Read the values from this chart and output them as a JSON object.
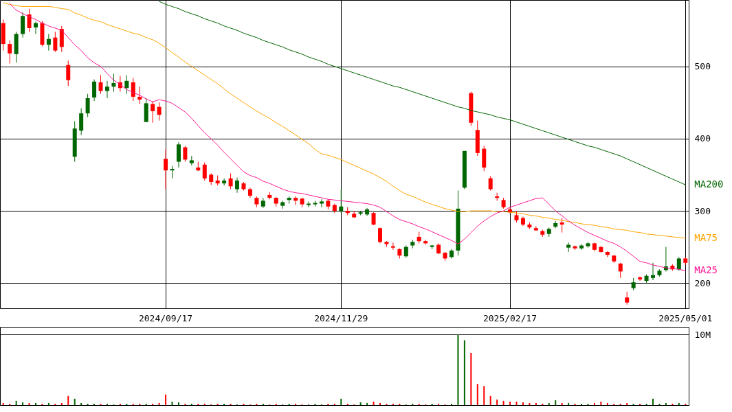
{
  "chart_data": [
    {
      "type": "candlestick",
      "categories": [
        null,
        null,
        null,
        null,
        null,
        null,
        null,
        null,
        null,
        null,
        null,
        null,
        null,
        null,
        null,
        null,
        null,
        null,
        null,
        null,
        null,
        null,
        null,
        null,
        null,
        "2024/09/17",
        null,
        null,
        null,
        null,
        null,
        null,
        null,
        null,
        null,
        null,
        null,
        null,
        null,
        null,
        null,
        null,
        null,
        null,
        null,
        null,
        null,
        null,
        null,
        null,
        null,
        null,
        "2024/11/29",
        null,
        null,
        null,
        null,
        null,
        null,
        null,
        null,
        null,
        null,
        null,
        null,
        null,
        null,
        null,
        null,
        null,
        null,
        null,
        null,
        null,
        null,
        null,
        null,
        null,
        "2025/02/17",
        null,
        null,
        null,
        null,
        null,
        null,
        null,
        null,
        null,
        null,
        null,
        null,
        null,
        null,
        null,
        null,
        null,
        null,
        null,
        null,
        null,
        null,
        null,
        null,
        null,
        null,
        "2025/05/01"
      ],
      "ohlc": [
        [
          560,
          565,
          522,
          531
        ],
        [
          531,
          536,
          504,
          518
        ],
        [
          517,
          548,
          505,
          545
        ],
        [
          545,
          575,
          540,
          570
        ],
        [
          572,
          580,
          548,
          553
        ],
        [
          554,
          562,
          545,
          560
        ],
        [
          560,
          563,
          528,
          530
        ],
        [
          530,
          545,
          522,
          538
        ],
        [
          540,
          548,
          520,
          522
        ],
        [
          552,
          556,
          520,
          527
        ],
        [
          502,
          508,
          473,
          481
        ],
        [
          375,
          424,
          368,
          414
        ],
        [
          411,
          442,
          405,
          435
        ],
        [
          435,
          462,
          430,
          456
        ],
        [
          457,
          482,
          452,
          479
        ],
        [
          478,
          488,
          462,
          466
        ],
        [
          466,
          480,
          456,
          472
        ],
        [
          472,
          490,
          465,
          477
        ],
        [
          478,
          487,
          465,
          470
        ],
        [
          470,
          488,
          462,
          480
        ],
        [
          478,
          484,
          452,
          458
        ],
        [
          458,
          472,
          448,
          454
        ],
        [
          423,
          456,
          423,
          449
        ],
        [
          448,
          452,
          422,
          438
        ],
        [
          444,
          450,
          425,
          433
        ],
        [
          372,
          385,
          330,
          356
        ],
        [
          356,
          362,
          345,
          358
        ],
        [
          368,
          395,
          360,
          392
        ],
        [
          388,
          390,
          368,
          371
        ],
        [
          366,
          376,
          363,
          370
        ],
        [
          360,
          368,
          355,
          356
        ],
        [
          364,
          367,
          342,
          345
        ],
        [
          350,
          352,
          336,
          340
        ],
        [
          342,
          349,
          335,
          338
        ],
        [
          338,
          345,
          335,
          342
        ],
        [
          345,
          352,
          330,
          334
        ],
        [
          330,
          346,
          325,
          342
        ],
        [
          338,
          340,
          328,
          330
        ],
        [
          330,
          332,
          318,
          321
        ],
        [
          318,
          320,
          305,
          309
        ],
        [
          306,
          318,
          304,
          314
        ],
        [
          322,
          326,
          316,
          318
        ],
        [
          318,
          319,
          306,
          310
        ],
        [
          307,
          314,
          303,
          312
        ],
        [
          315,
          320,
          310,
          318
        ],
        [
          318,
          320,
          308,
          314
        ],
        [
          317,
          318,
          305,
          309
        ],
        [
          308,
          313,
          305,
          310
        ],
        [
          309,
          314,
          306,
          311
        ],
        [
          310,
          316,
          305,
          313
        ],
        [
          314,
          316,
          302,
          306
        ],
        [
          308,
          310,
          297,
          300
        ],
        [
          300,
          330,
          297,
          306
        ],
        [
          300,
          305,
          294,
          297
        ],
        [
          296,
          300,
          290,
          291
        ],
        [
          296,
          299,
          294,
          298
        ],
        [
          295,
          304,
          293,
          302
        ],
        [
          297,
          298,
          280,
          281
        ],
        [
          276,
          277,
          255,
          257
        ],
        [
          257,
          258,
          250,
          254
        ],
        [
          251,
          256,
          246,
          249
        ],
        [
          247,
          248,
          234,
          238
        ],
        [
          237,
          252,
          235,
          250
        ],
        [
          252,
          260,
          248,
          257
        ],
        [
          264,
          271,
          255,
          258
        ],
        [
          258,
          260,
          253,
          255
        ],
        [
          250,
          253,
          247,
          252
        ],
        [
          253,
          255,
          240,
          241
        ],
        [
          242,
          243,
          231,
          234
        ],
        [
          236,
          247,
          234,
          245
        ],
        [
          245,
          328,
          238,
          303
        ],
        [
          332,
          383,
          330,
          383
        ],
        [
          463,
          465,
          418,
          422
        ],
        [
          412,
          425,
          376,
          380
        ],
        [
          386,
          390,
          355,
          360
        ],
        [
          345,
          348,
          328,
          330
        ],
        [
          320,
          325,
          314,
          318
        ],
        [
          315,
          318,
          303,
          305
        ],
        [
          302,
          305,
          296,
          298
        ],
        [
          294,
          300,
          284,
          287
        ],
        [
          290,
          292,
          279,
          281
        ],
        [
          281,
          284,
          275,
          277
        ],
        [
          276,
          279,
          272,
          273
        ],
        [
          272,
          274,
          264,
          267
        ],
        [
          268,
          277,
          264,
          275
        ],
        [
          278,
          286,
          276,
          283
        ],
        [
          284,
          290,
          270,
          281
        ],
        [
          249,
          256,
          243,
          253
        ],
        [
          251,
          252,
          246,
          248
        ],
        [
          248,
          254,
          246,
          252
        ],
        [
          251,
          257,
          249,
          255
        ],
        [
          255,
          256,
          244,
          246
        ],
        [
          250,
          251,
          242,
          243
        ],
        [
          243,
          244,
          236,
          239
        ],
        [
          238,
          239,
          228,
          230
        ],
        [
          227,
          228,
          207,
          216
        ],
        [
          180,
          188,
          170,
          173
        ],
        [
          193,
          207,
          190,
          201
        ],
        [
          208,
          209,
          203,
          205
        ],
        [
          203,
          212,
          199,
          210
        ],
        [
          207,
          228,
          204,
          211
        ],
        [
          211,
          219,
          209,
          217
        ],
        [
          218,
          250,
          216,
          223
        ],
        [
          224,
          226,
          217,
          219
        ],
        [
          219,
          236,
          217,
          234
        ],
        [
          234,
          236,
          225,
          228
        ]
      ],
      "series": [
        {
          "name": "MA200",
          "type": "line",
          "color": "#006400",
          "values": [
            null,
            null,
            null,
            null,
            null,
            null,
            null,
            null,
            null,
            null,
            null,
            null,
            null,
            null,
            null,
            null,
            null,
            null,
            null,
            null,
            null,
            null,
            null,
            null,
            590,
            586,
            583,
            580,
            576,
            573,
            570,
            566,
            563,
            560,
            556,
            553,
            550,
            546,
            543,
            540,
            536,
            533,
            530,
            527,
            523,
            520,
            517,
            513,
            510,
            507,
            503,
            500,
            497,
            494,
            491,
            488,
            485,
            482,
            479,
            476,
            473,
            471,
            468,
            465,
            462,
            459,
            456,
            453,
            450,
            447,
            444,
            442,
            439,
            437,
            435,
            433,
            430,
            428,
            426,
            423,
            420,
            417,
            414,
            411,
            408,
            405,
            402,
            399,
            396,
            393,
            390,
            388,
            385,
            382,
            379,
            376,
            372,
            368,
            364,
            360,
            356,
            352,
            348,
            344,
            340,
            336
          ]
        },
        {
          "name": "MA75",
          "type": "line",
          "color": "#ffa500",
          "values": [
            588,
            586,
            584,
            583,
            583,
            583,
            583,
            583,
            582,
            580,
            579,
            574,
            571,
            567,
            564,
            562,
            558,
            555,
            552,
            549,
            546,
            544,
            540,
            537,
            532,
            526,
            519,
            513,
            506,
            500,
            494,
            488,
            482,
            476,
            469,
            462,
            456,
            450,
            444,
            438,
            433,
            428,
            422,
            417,
            411,
            405,
            399,
            393,
            385,
            379,
            377,
            374,
            371,
            367,
            363,
            359,
            355,
            351,
            346,
            341,
            334,
            328,
            323,
            320,
            316,
            312,
            309,
            306,
            303,
            301,
            299,
            299,
            300,
            300,
            300,
            300,
            299,
            299,
            298,
            297,
            296,
            294,
            293,
            291,
            290,
            288,
            287,
            285,
            284,
            282,
            281,
            280,
            278,
            277,
            275,
            274,
            273,
            271,
            270,
            268,
            267,
            266,
            265,
            264,
            263,
            262
          ]
        },
        {
          "name": "MA25",
          "type": "line",
          "color": "#ff1493",
          "values": [
            null,
            587,
            578,
            573,
            569,
            565,
            560,
            556,
            553,
            550,
            540,
            530,
            522,
            512,
            505,
            500,
            490,
            481,
            475,
            468,
            464,
            460,
            455,
            451,
            454,
            452,
            449,
            443,
            437,
            428,
            418,
            408,
            400,
            391,
            381,
            372,
            363,
            354,
            349,
            346,
            341,
            338,
            334,
            330,
            327,
            325,
            324,
            322,
            320,
            318,
            316,
            315,
            314,
            313,
            312,
            311,
            310,
            308,
            305,
            299,
            293,
            288,
            285,
            282,
            278,
            275,
            271,
            267,
            263,
            259,
            254,
            261,
            270,
            279,
            286,
            292,
            297,
            300,
            305,
            308,
            311,
            314,
            317,
            318,
            309,
            300,
            293,
            286,
            280,
            275,
            270,
            266,
            262,
            258,
            255,
            250,
            244,
            237,
            230,
            228,
            225,
            223,
            221,
            220,
            219,
            217
          ]
        }
      ],
      "ylim": [
        165,
        592
      ],
      "yticks": [
        200,
        300,
        400,
        500
      ],
      "grid": true
    },
    {
      "type": "bar",
      "categories": [
        null,
        null,
        null,
        null,
        null,
        null,
        null,
        null,
        null,
        null,
        null,
        null,
        null,
        null,
        null,
        null,
        null,
        null,
        null,
        null,
        null,
        null,
        null,
        null,
        null,
        "2024/09/17",
        null,
        null,
        null,
        null,
        null,
        null,
        null,
        null,
        null,
        null,
        null,
        null,
        null,
        null,
        null,
        null,
        null,
        null,
        null,
        null,
        null,
        null,
        null,
        null,
        null,
        null,
        "2024/11/29",
        null,
        null,
        null,
        null,
        null,
        null,
        null,
        null,
        null,
        null,
        null,
        null,
        null,
        null,
        null,
        null,
        null,
        null,
        null,
        null,
        null,
        null,
        null,
        null,
        null,
        "2025/02/17",
        null,
        null,
        null,
        null,
        null,
        null,
        null,
        null,
        null,
        null,
        null,
        null,
        null,
        null,
        null,
        null,
        null,
        null,
        null,
        null,
        null,
        null,
        null,
        null,
        null,
        null,
        "2025/05/01"
      ],
      "values": [
        0.3,
        0.2,
        0.6,
        0.4,
        0.3,
        0.3,
        0.2,
        0.3,
        0.2,
        0.3,
        1.3,
        0.9,
        0.3,
        0.2,
        0.2,
        0.2,
        0.2,
        0.1,
        0.2,
        0.2,
        0.2,
        0.2,
        0.2,
        0.2,
        0.3,
        1.5,
        0.5,
        0.4,
        0.2,
        0.2,
        0.2,
        0.2,
        0.1,
        0.2,
        0.2,
        0.2,
        0.1,
        0.2,
        0.1,
        0.2,
        0.2,
        0.1,
        0.2,
        0.1,
        0.2,
        0.2,
        0.1,
        0.1,
        0.2,
        0.1,
        0.2,
        0.2,
        0.9,
        0.2,
        0.1,
        0.4,
        0.3,
        0.5,
        0.3,
        0.2,
        0.2,
        0.2,
        0.1,
        0.2,
        0.2,
        0.1,
        0.2,
        0.2,
        0.1,
        0.2,
        10,
        9.2,
        7.4,
        3,
        2.7,
        1.3,
        0.8,
        0.6,
        0.5,
        0.5,
        0.4,
        0.3,
        0.3,
        0.2,
        0.3,
        0.7,
        0.3,
        0.3,
        0.2,
        0.2,
        0.2,
        0.3,
        0.5,
        0.3,
        0.2,
        0.2,
        0.3,
        0.2,
        0.2,
        0.2,
        0.9,
        0.2,
        0.3,
        0.2,
        0.3,
        0.2
      ],
      "colors": [
        "#ff0000",
        "#ff0000",
        "#006600",
        "#006600",
        "#ff0000",
        "#006600",
        "#ff0000",
        "#006600",
        "#ff0000",
        "#ff0000",
        "#ff0000",
        "#006600",
        "#006600",
        "#006600",
        "#006600",
        "#ff0000",
        "#006600",
        "#006600",
        "#ff0000",
        "#006600",
        "#ff0000",
        "#ff0000",
        "#006600",
        "#ff0000",
        "#ff0000",
        "#ff0000",
        "#006600",
        "#006600",
        "#ff0000",
        "#006600",
        "#ff0000",
        "#ff0000",
        "#ff0000",
        "#ff0000",
        "#006600",
        "#ff0000",
        "#006600",
        "#ff0000",
        "#ff0000",
        "#ff0000",
        "#006600",
        "#ff0000",
        "#ff0000",
        "#006600",
        "#006600",
        "#ff0000",
        "#ff0000",
        "#006600",
        "#006600",
        "#006600",
        "#ff0000",
        "#ff0000",
        "#006600",
        "#ff0000",
        "#ff0000",
        "#006600",
        "#006600",
        "#ff0000",
        "#ff0000",
        "#ff0000",
        "#ff0000",
        "#ff0000",
        "#006600",
        "#006600",
        "#ff0000",
        "#ff0000",
        "#006600",
        "#ff0000",
        "#ff0000",
        "#006600",
        "#006600",
        "#006600",
        "#ff0000",
        "#ff0000",
        "#ff0000",
        "#ff0000",
        "#ff0000",
        "#ff0000",
        "#ff0000",
        "#ff0000",
        "#ff0000",
        "#ff0000",
        "#ff0000",
        "#ff0000",
        "#006600",
        "#006600",
        "#ff0000",
        "#006600",
        "#ff0000",
        "#006600",
        "#006600",
        "#ff0000",
        "#ff0000",
        "#ff0000",
        "#ff0000",
        "#ff0000",
        "#ff0000",
        "#006600",
        "#ff0000",
        "#006600",
        "#006600",
        "#006600",
        "#006600",
        "#ff0000",
        "#006600",
        "#ff0000"
      ],
      "ylim": [
        0,
        11.1
      ],
      "yticks": [
        {
          "value": 0,
          "label": null
        },
        {
          "value": 10,
          "label": "10M"
        }
      ],
      "grid": "y",
      "tick_labels": "y"
    }
  ]
}
